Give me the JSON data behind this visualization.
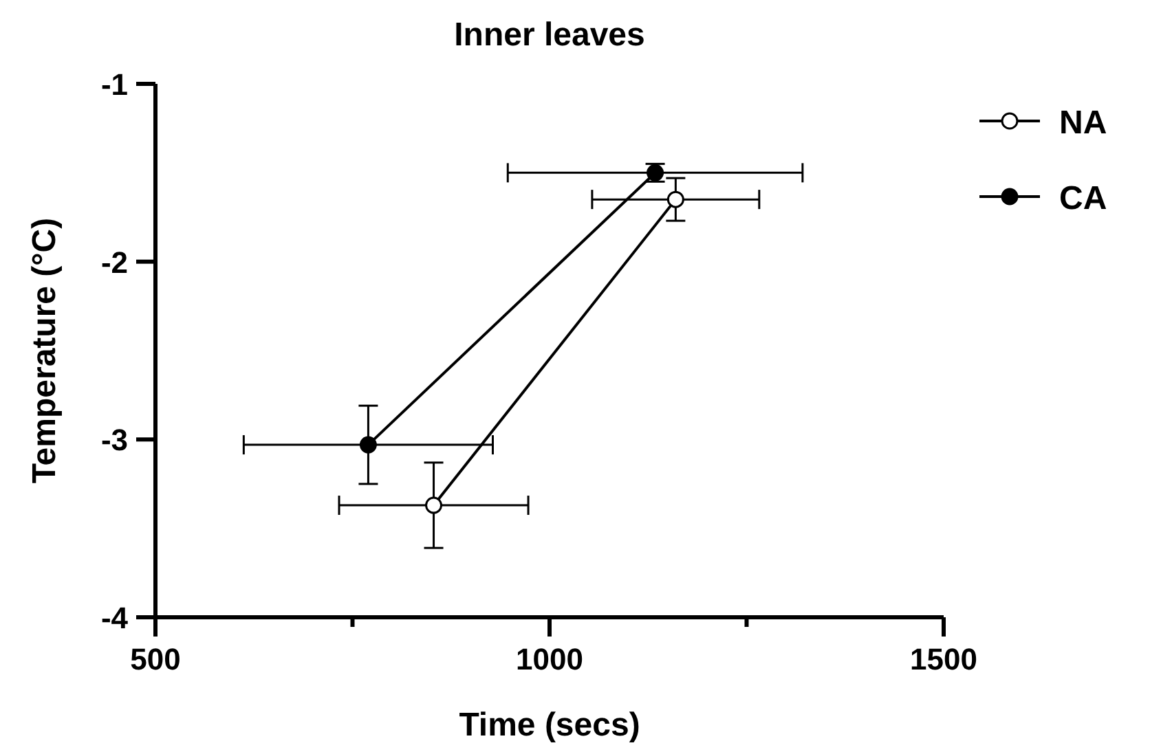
{
  "chart_data": {
    "type": "line",
    "title": "Inner leaves",
    "xlabel": "Time (secs)",
    "ylabel": "Temperature (°C)",
    "xlim": [
      500,
      1500
    ],
    "xticks": [
      500,
      {
        "value": 750,
        "label": null
      },
      1000,
      {
        "value": 1250,
        "label": null
      },
      1500
    ],
    "ylim": [
      -4,
      -1
    ],
    "yticks": [
      -4,
      -3,
      -2,
      -1
    ],
    "grid": false,
    "legend": "top right",
    "series": [
      {
        "name": "NA",
        "color": "#000000",
        "marker": "circle",
        "x": [
          853,
          1160
        ],
        "values": [
          -3.37,
          -1.65
        ],
        "errors": [
          0.24,
          0.12
        ],
        "xerrors": [
          120,
          106
        ]
      },
      {
        "name": "CA",
        "color": "#000000",
        "marker": "circle",
        "x": [
          770,
          1134
        ],
        "values": [
          -3.03,
          -1.5
        ],
        "errors": [
          0.22,
          0.05
        ],
        "xerrors": [
          158,
          187
        ]
      }
    ]
  }
}
